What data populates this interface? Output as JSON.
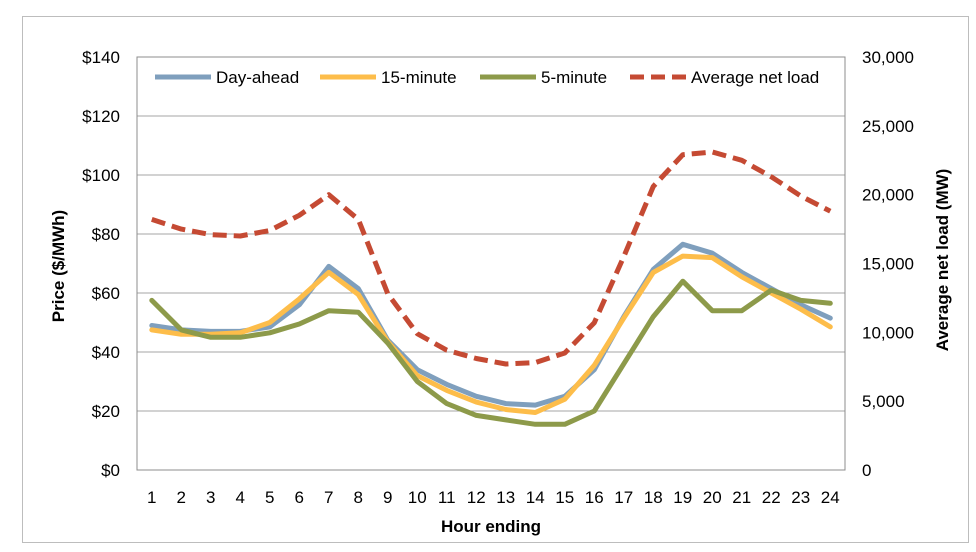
{
  "chart_data": {
    "type": "line",
    "title": "",
    "xlabel": "Hour ending",
    "ylabel": "Price ($/MWh)",
    "y2label": "Average net load (MW)",
    "categories": [
      "1",
      "2",
      "3",
      "4",
      "5",
      "6",
      "7",
      "8",
      "9",
      "10",
      "11",
      "12",
      "13",
      "14",
      "15",
      "16",
      "17",
      "18",
      "19",
      "20",
      "21",
      "22",
      "23",
      "24"
    ],
    "ylim": [
      0,
      140
    ],
    "y2lim": [
      0,
      30000
    ],
    "yticks": [
      "$0",
      "$20",
      "$40",
      "$60",
      "$80",
      "$100",
      "$120",
      "$140"
    ],
    "y2ticks": [
      "0",
      "5,000",
      "10,000",
      "15,000",
      "20,000",
      "25,000",
      "30,000"
    ],
    "grid": true,
    "legend_position": "top",
    "series": [
      {
        "name": "Day-ahead",
        "axis": "left",
        "color": "#7f9fbd",
        "style": "solid",
        "values": [
          49,
          47.5,
          47,
          47,
          48.5,
          56,
          69,
          61.5,
          44,
          34,
          29,
          25,
          22.5,
          22,
          25,
          34,
          52,
          68,
          76.5,
          73.5,
          67,
          61.5,
          56,
          51.5
        ]
      },
      {
        "name": "15-minute",
        "axis": "left",
        "color": "#fdbd4a",
        "style": "solid",
        "values": [
          47.5,
          46,
          46,
          46.5,
          50,
          58,
          67,
          59.5,
          43.5,
          32,
          27,
          23,
          20.5,
          19.5,
          24,
          35.5,
          51.5,
          67,
          72.5,
          72,
          65.5,
          60,
          54.5,
          48.5
        ]
      },
      {
        "name": "5-minute",
        "axis": "left",
        "color": "#8d9a4a",
        "style": "solid",
        "values": [
          57.5,
          47.5,
          45,
          45,
          46.5,
          49.5,
          54,
          53.5,
          43,
          30,
          22.5,
          18.5,
          17,
          15.5,
          15.5,
          20,
          36,
          52,
          64,
          54,
          54,
          61,
          57.5,
          56.5
        ]
      },
      {
        "name": "Average net load",
        "axis": "right",
        "color": "#c54a33",
        "style": "dashed",
        "values": [
          18200,
          17500,
          17100,
          17000,
          17400,
          18500,
          20000,
          18200,
          12800,
          9900,
          8700,
          8100,
          7700,
          7800,
          8500,
          10700,
          15500,
          20600,
          22900,
          23100,
          22500,
          21300,
          19900,
          18800
        ]
      }
    ]
  }
}
